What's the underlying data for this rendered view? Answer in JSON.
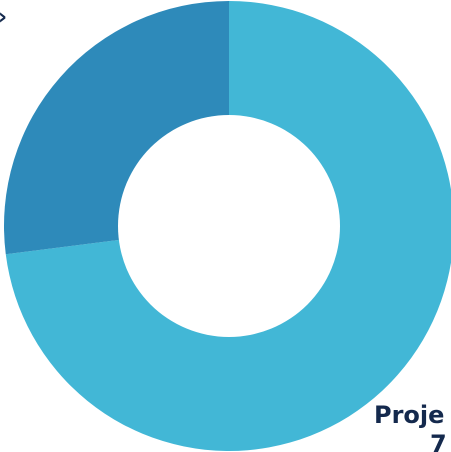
{
  "chart_data": {
    "type": "pie",
    "variant": "donut",
    "slices": [
      {
        "label": "Proje",
        "value_text": "7",
        "percent": 73,
        "color": "#42b7d6"
      },
      {
        "label": "",
        "value_text": "",
        "percent": 27,
        "color": "#2e8aba"
      }
    ],
    "legend": "none",
    "top_left_mark": "›"
  },
  "colors": {
    "background": "#ffffff",
    "label_text": "#14294d"
  }
}
